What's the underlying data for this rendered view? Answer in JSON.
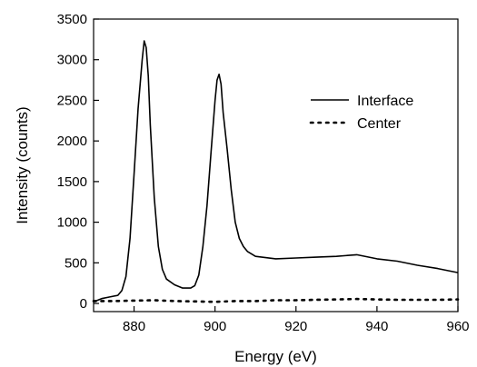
{
  "chart_data": {
    "type": "line",
    "xlabel": "Energy (eV)",
    "ylabel": "Intensity (counts)",
    "xlim": [
      870,
      960
    ],
    "ylim": [
      -100,
      3500
    ],
    "xticks": [
      880,
      900,
      920,
      940,
      960
    ],
    "yticks": [
      0,
      500,
      1000,
      1500,
      2000,
      2500,
      3000,
      3500
    ],
    "grid": false,
    "legend_position": "right",
    "series": [
      {
        "name": "Interface",
        "style": "solid",
        "color": "#000000",
        "x": [
          870,
          872,
          874,
          876,
          877,
          878,
          879,
          880,
          881,
          882,
          882.5,
          883,
          883.5,
          884,
          885,
          886,
          887,
          888,
          890,
          892,
          894,
          895,
          896,
          897,
          898,
          899,
          900,
          900.5,
          901,
          901.5,
          902,
          903,
          904,
          905,
          906,
          907,
          908,
          910,
          915,
          920,
          925,
          930,
          935,
          940,
          945,
          950,
          955,
          960
        ],
        "y": [
          20,
          60,
          80,
          100,
          160,
          330,
          800,
          1600,
          2400,
          3000,
          3230,
          3150,
          2800,
          2200,
          1300,
          700,
          420,
          300,
          230,
          190,
          190,
          220,
          350,
          700,
          1200,
          1850,
          2500,
          2750,
          2820,
          2700,
          2350,
          1900,
          1400,
          1000,
          800,
          700,
          640,
          580,
          550,
          560,
          570,
          580,
          600,
          550,
          520,
          470,
          430,
          380
        ]
      },
      {
        "name": "Center",
        "style": "dotted",
        "color": "#000000",
        "x": [
          870,
          875,
          880,
          885,
          890,
          895,
          900,
          905,
          910,
          915,
          920,
          925,
          930,
          935,
          940,
          945,
          950,
          955,
          960
        ],
        "y": [
          30,
          30,
          35,
          40,
          30,
          25,
          20,
          30,
          30,
          40,
          40,
          45,
          50,
          55,
          50,
          45,
          45,
          45,
          50
        ]
      }
    ]
  }
}
